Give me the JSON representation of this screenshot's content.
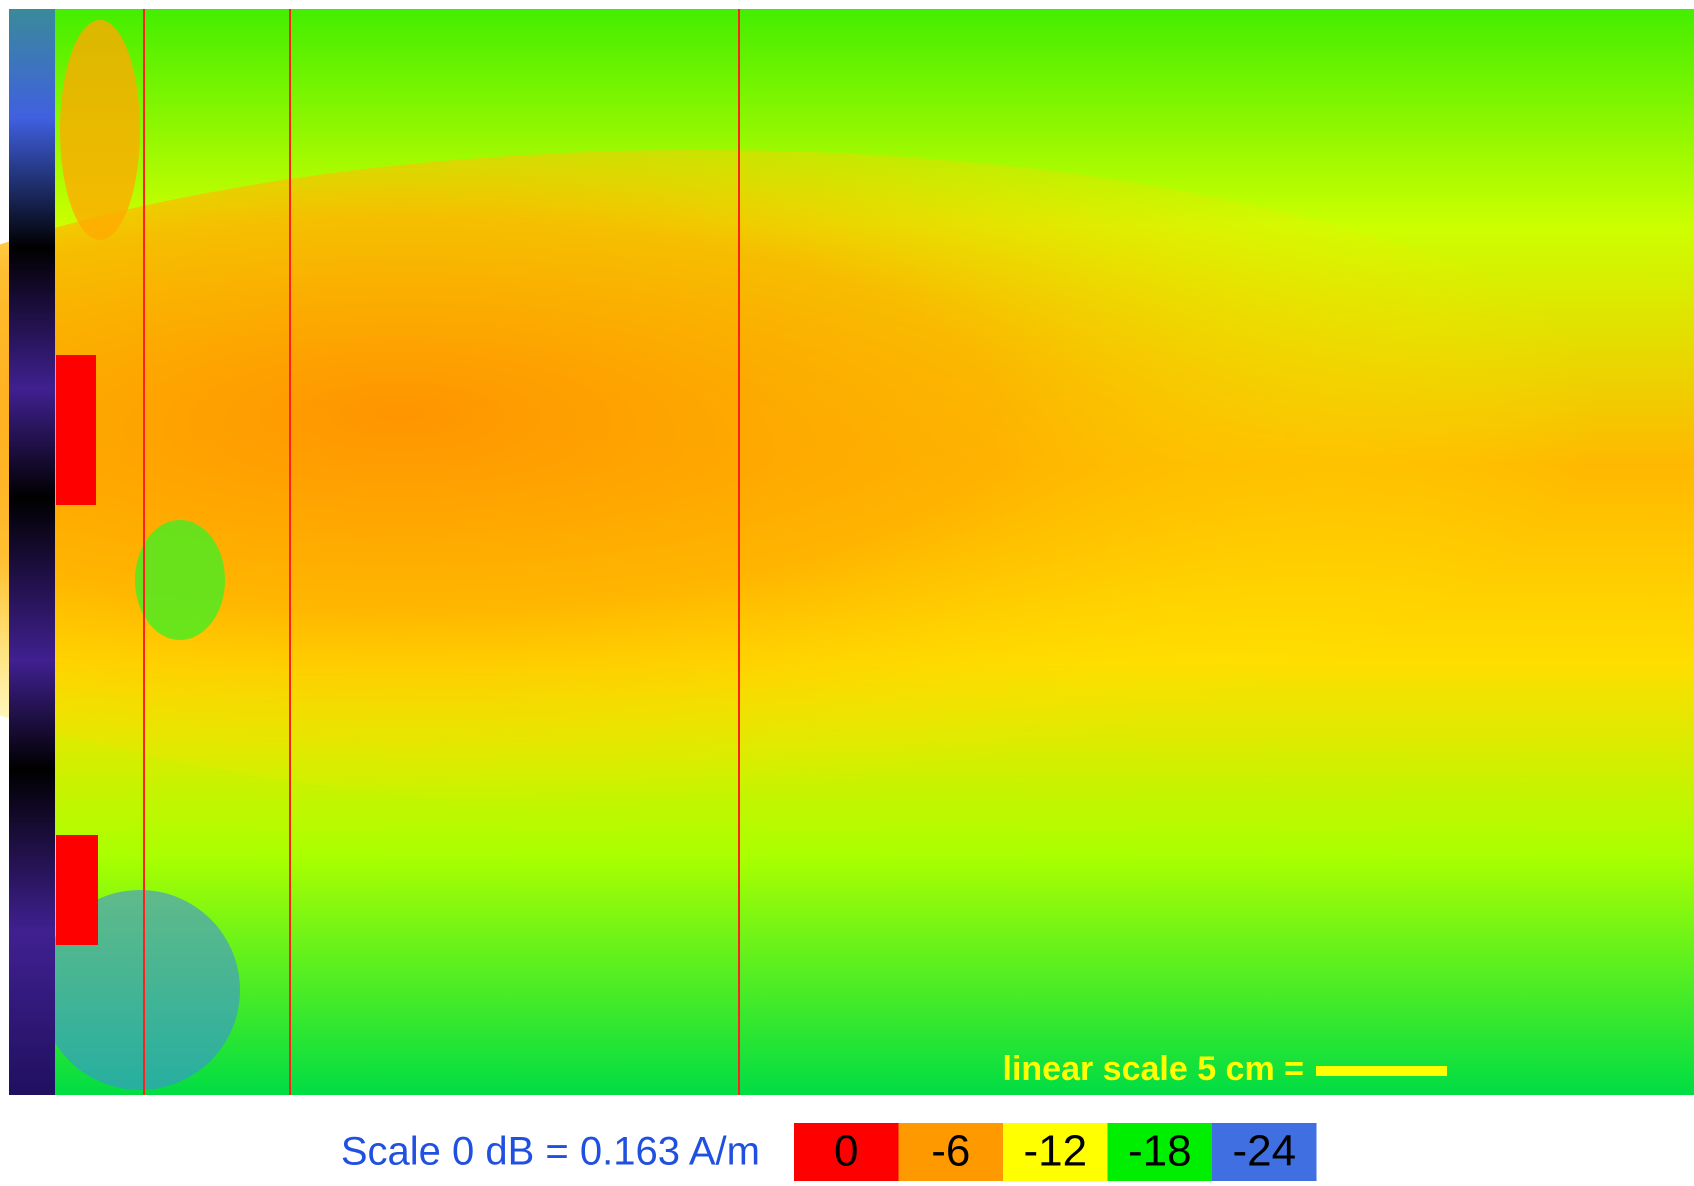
{
  "field_map": {
    "scale_note": "linear scale 5 cm ="
  },
  "legend": {
    "title": "Scale 0 dB = 0.163 A/m",
    "items": [
      {
        "label": "0",
        "color": "#ff0000"
      },
      {
        "label": "-6",
        "color": "#ff9900"
      },
      {
        "label": "-12",
        "color": "#ffff00"
      },
      {
        "label": "-18",
        "color": "#00ee00"
      },
      {
        "label": "-24",
        "color": "#3f6fe0"
      }
    ]
  }
}
